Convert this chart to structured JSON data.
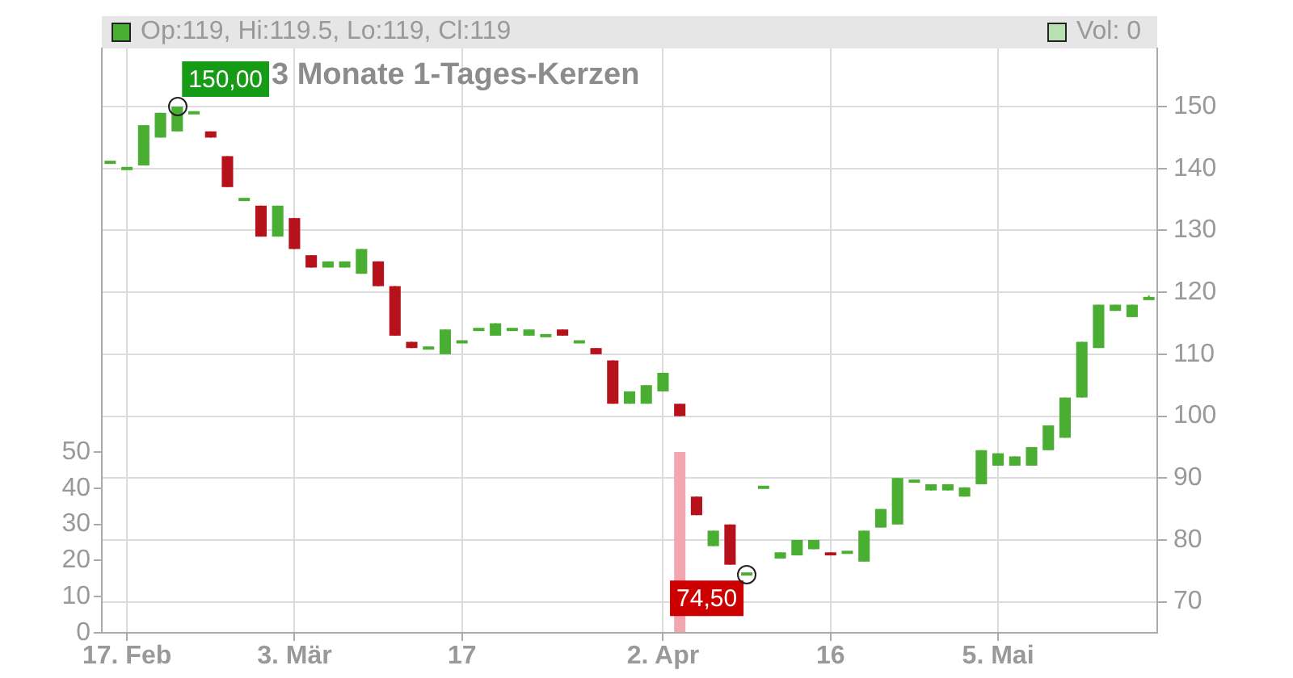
{
  "chart_data": {
    "type": "candlestick",
    "title": "3 Monate 1-Tages-Kerzen",
    "categories": [
      null,
      "17. Feb",
      null,
      null,
      null,
      null,
      null,
      null,
      null,
      null,
      null,
      "3. Mär",
      null,
      null,
      null,
      null,
      null,
      null,
      null,
      null,
      null,
      "17",
      null,
      null,
      null,
      null,
      null,
      null,
      null,
      null,
      null,
      null,
      null,
      "2. Apr",
      null,
      null,
      null,
      null,
      null,
      null,
      null,
      null,
      null,
      "16",
      null,
      null,
      null,
      null,
      null,
      null,
      null,
      null,
      null,
      "5. Mai",
      null,
      null,
      null,
      null,
      null,
      null,
      null,
      null,
      null
    ],
    "ohlc": [
      [
        141,
        141,
        141,
        141
      ],
      [
        140,
        140,
        140,
        140
      ],
      [
        140.5,
        147,
        140.5,
        147
      ],
      [
        145,
        149,
        145,
        149
      ],
      [
        146,
        150,
        146,
        150
      ],
      [
        149,
        149,
        149,
        149
      ],
      [
        146,
        146,
        145,
        145
      ],
      [
        142,
        142,
        137,
        137
      ],
      [
        135,
        135,
        135,
        135
      ],
      [
        134,
        134,
        129,
        129
      ],
      [
        129,
        134,
        129,
        134
      ],
      [
        132,
        132,
        127,
        127
      ],
      [
        126,
        126,
        124,
        124
      ],
      [
        124,
        125,
        124,
        125
      ],
      [
        124,
        125,
        124,
        125
      ],
      [
        123,
        127,
        123,
        127
      ],
      [
        125,
        125,
        121,
        121
      ],
      [
        121,
        121,
        113,
        113
      ],
      [
        112,
        112,
        111,
        111
      ],
      [
        111,
        111,
        111,
        111
      ],
      [
        110,
        114,
        110,
        114
      ],
      [
        112,
        112,
        112,
        112
      ],
      [
        114,
        114,
        114,
        114
      ],
      [
        113,
        115,
        113,
        115
      ],
      [
        114,
        114,
        114,
        114
      ],
      [
        113,
        114,
        113,
        114
      ],
      [
        113,
        113,
        113,
        113
      ],
      [
        114,
        114,
        113,
        113
      ],
      [
        112,
        112,
        112,
        112
      ],
      [
        111,
        111,
        110,
        110
      ],
      [
        109,
        109,
        102,
        102
      ],
      [
        102,
        104,
        102,
        104
      ],
      [
        102,
        105,
        102,
        105
      ],
      [
        104,
        107,
        104,
        107
      ],
      [
        102,
        102,
        100,
        100
      ],
      [
        87,
        87,
        84,
        84
      ],
      [
        79,
        81.5,
        79,
        81.5
      ],
      [
        82.5,
        82.5,
        76,
        76
      ],
      [
        74.5,
        74.5,
        74.5,
        74.5
      ],
      [
        88.5,
        88.5,
        88.5,
        88.5
      ],
      [
        77,
        78,
        77,
        78
      ],
      [
        77.5,
        80,
        77.5,
        80
      ],
      [
        78.5,
        80,
        78.5,
        80
      ],
      [
        78,
        78,
        77.5,
        77.5
      ],
      [
        78,
        78,
        78,
        78
      ],
      [
        76.5,
        81.5,
        76.5,
        81.5
      ],
      [
        82,
        85,
        82,
        85
      ],
      [
        82.5,
        90,
        82.5,
        90
      ],
      [
        89.5,
        89.5,
        89.5,
        89.5
      ],
      [
        88,
        89,
        88,
        89
      ],
      [
        88,
        89,
        88,
        89
      ],
      [
        87,
        88.5,
        87,
        88.5
      ],
      [
        89,
        94.5,
        89,
        94.5
      ],
      [
        92,
        94,
        92,
        94
      ],
      [
        92,
        93.5,
        92,
        93.5
      ],
      [
        92,
        95,
        92,
        95
      ],
      [
        94.5,
        98.5,
        94.5,
        98.5
      ],
      [
        96.5,
        103,
        96.5,
        103
      ],
      [
        103,
        112,
        103,
        112
      ],
      [
        111,
        118,
        111,
        118
      ],
      [
        117,
        118,
        117,
        118
      ],
      [
        116,
        118,
        116,
        118
      ],
      [
        119,
        119.5,
        119,
        119
      ]
    ],
    "colors": [
      "#4aae32",
      "#4aae32",
      "#4aae32",
      "#4aae32",
      "#4aae32",
      "#4aae32",
      "#b5121b",
      "#b5121b",
      "#4aae32",
      "#b5121b",
      "#4aae32",
      "#b5121b",
      "#b5121b",
      "#4aae32",
      "#4aae32",
      "#4aae32",
      "#b5121b",
      "#b5121b",
      "#b5121b",
      "#4aae32",
      "#4aae32",
      "#4aae32",
      "#4aae32",
      "#4aae32",
      "#4aae32",
      "#4aae32",
      "#4aae32",
      "#b5121b",
      "#4aae32",
      "#b5121b",
      "#b5121b",
      "#4aae32",
      "#4aae32",
      "#4aae32",
      "#b5121b",
      "#b5121b",
      "#4aae32",
      "#b5121b",
      "#4aae32",
      "#4aae32",
      "#4aae32",
      "#4aae32",
      "#4aae32",
      "#b5121b",
      "#4aae32",
      "#4aae32",
      "#4aae32",
      "#4aae32",
      "#4aae32",
      "#4aae32",
      "#4aae32",
      "#4aae32",
      "#4aae32",
      "#4aae32",
      "#4aae32",
      "#4aae32",
      "#4aae32",
      "#4aae32",
      "#4aae32",
      "#4aae32",
      "#4aae32",
      "#4aae32",
      "#4aae32"
    ],
    "series": [
      {
        "type": "bar",
        "axis": "y2",
        "color": "#f2a7b0",
        "values": [
          0,
          0,
          0,
          0,
          0,
          0,
          0,
          0,
          0,
          0,
          0,
          0,
          0,
          0,
          0,
          0,
          0,
          0,
          0,
          0,
          0,
          0,
          0,
          0,
          0,
          0,
          0,
          0,
          0,
          0,
          0,
          0,
          0,
          0,
          50,
          0,
          0,
          0,
          0,
          0,
          0,
          0,
          0,
          0,
          0,
          0,
          0,
          0,
          0,
          0,
          0,
          0,
          0,
          0,
          0,
          0,
          0,
          0,
          0,
          0,
          0,
          0,
          0
        ]
      }
    ],
    "ylim": [
      65,
      159.4
    ],
    "yticks": [
      70,
      80,
      90,
      100,
      110,
      120,
      130,
      140,
      150
    ],
    "y2lim": [
      0,
      161.6
    ],
    "y2ticks": [
      0,
      10,
      20,
      30,
      40,
      50
    ],
    "grid": true,
    "annotations": [
      "Op:119, Hi:119.5, Lo:119, Cl:119",
      "Vol: 0",
      "150,00",
      "74,50"
    ]
  }
}
